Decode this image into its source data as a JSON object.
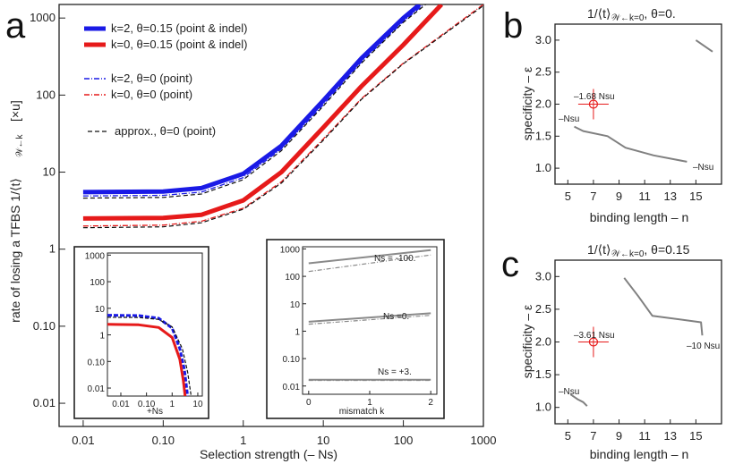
{
  "panels": {
    "a": {
      "letter": "a",
      "xlabel": "Selection strength  (– Ns)",
      "ylabel": "rate of losing a TFBS  1/⟨t⟩",
      "ylabel_sub": "𝒲←k",
      "ylabel_unit": "[×u]",
      "xticks": [
        "0.01",
        "0.10",
        "1",
        "10",
        "100",
        "1000"
      ],
      "yticks": [
        "0.01",
        "0.10",
        "1",
        "10",
        "100",
        "1000"
      ],
      "legend": [
        {
          "label": "k=2, θ=0.15 (point & indel)",
          "color": "#1a1ae6",
          "style": "thick"
        },
        {
          "label": "k=0, θ=0.15 (point & indel)",
          "color": "#e61a1a",
          "style": "thick"
        },
        {
          "label": "k=2, θ=0 (point)",
          "color": "#1a1ae6",
          "style": "dashdot"
        },
        {
          "label": "k=0, θ=0 (point)",
          "color": "#e61a1a",
          "style": "dashdot"
        },
        {
          "label": "approx., θ=0 (point)",
          "color": "#111111",
          "style": "dashed"
        }
      ]
    },
    "inset1": {
      "xlabel": "+Ns",
      "xticks": [
        "0.01",
        "0.10",
        "1",
        "10"
      ],
      "yticks": [
        "0.01",
        "0.10",
        "1",
        "10",
        "100",
        "1000"
      ]
    },
    "inset2": {
      "xlabel": "mismatch k",
      "xticks": [
        "0",
        "1",
        "2"
      ],
      "yticks": [
        "0.01",
        "0.10",
        "1",
        "10",
        "100",
        "1000"
      ],
      "annotations": [
        "Ns = -100.",
        "Ns =0.",
        "Ns = +3."
      ]
    },
    "b": {
      "letter": "b",
      "title": "1/⟨t⟩",
      "title_sub": "𝒲←k=0",
      "title_tail": ", θ=0.",
      "xlabel": "binding length – n",
      "ylabel": "specificity – ε",
      "xticks": [
        "5",
        "7",
        "9",
        "11",
        "13",
        "15"
      ],
      "yticks": [
        "1.0",
        "1.5",
        "2.0",
        "2.5",
        "3.0"
      ],
      "annotations": [
        "–1.68 Nsu",
        "–Nsu",
        "–Nsu"
      ]
    },
    "c": {
      "letter": "c",
      "title": "1/⟨t⟩",
      "title_sub": "𝒲←k=0",
      "title_tail": ", θ=0.15",
      "xlabel": "binding length – n",
      "ylabel": "specificity – ε",
      "xticks": [
        "5",
        "7",
        "9",
        "11",
        "13",
        "15"
      ],
      "yticks": [
        "1.0",
        "1.5",
        "2.0",
        "2.5",
        "3.0"
      ],
      "annotations": [
        "–3.61 Nsu",
        "–10 Nsu",
        "–Nsu"
      ]
    }
  },
  "chart_data": [
    {
      "type": "line",
      "panel": "a",
      "xscale": "log",
      "yscale": "log",
      "xlim": [
        0.005,
        1000
      ],
      "ylim": [
        0.005,
        1500
      ],
      "series": [
        {
          "name": "k=2, θ=0.15 (point & indel)",
          "x": [
            0.01,
            0.1,
            0.3,
            1,
            3,
            10,
            30,
            100,
            160
          ],
          "y": [
            5.5,
            5.6,
            6.2,
            9.5,
            22,
            85,
            300,
            1000,
            1500
          ]
        },
        {
          "name": "k=0, θ=0.15 (point & indel)",
          "x": [
            0.01,
            0.1,
            0.3,
            1,
            3,
            10,
            30,
            100,
            300
          ],
          "y": [
            2.5,
            2.55,
            2.8,
            4.3,
            10,
            38,
            130,
            450,
            1500
          ]
        },
        {
          "name": "k=2, θ=0 (point)",
          "x": [
            0.01,
            0.1,
            0.3,
            1,
            3,
            10,
            30,
            100,
            180
          ],
          "y": [
            4.9,
            5.0,
            5.5,
            8.5,
            20,
            75,
            270,
            900,
            1500
          ]
        },
        {
          "name": "k=0, θ=0 (point)",
          "x": [
            0.01,
            0.1,
            0.3,
            1,
            3,
            10,
            30,
            100,
            1000
          ],
          "y": [
            2.0,
            2.05,
            2.3,
            3.4,
            7.5,
            27,
            90,
            260,
            1500
          ]
        },
        {
          "name": "approx., θ=0 (point)",
          "x": [
            0.01,
            0.1,
            0.3,
            1,
            3,
            10,
            30,
            100,
            1000
          ],
          "y": [
            1.9,
            1.95,
            2.2,
            3.3,
            7.2,
            26,
            88,
            255,
            1450
          ]
        },
        {
          "name": "approx. k=2",
          "x": [
            0.01,
            0.1,
            0.3,
            1,
            3,
            10,
            30,
            100,
            190
          ],
          "y": [
            4.6,
            4.7,
            5.2,
            8.0,
            19,
            72,
            260,
            880,
            1500
          ]
        }
      ]
    },
    {
      "type": "line",
      "panel": "inset1",
      "xscale": "log",
      "yscale": "log",
      "xlim": [
        0.003,
        15
      ],
      "ylim": [
        0.005,
        1200
      ],
      "series": [
        {
          "name": "k=2 θ=0.15",
          "x": [
            0.003,
            0.05,
            0.3,
            1,
            2,
            3,
            4
          ],
          "y": [
            5.5,
            5.3,
            4.2,
            1.8,
            0.3,
            0.05,
            0.005
          ]
        },
        {
          "name": "k=0 θ=0.15",
          "x": [
            0.003,
            0.05,
            0.3,
            1,
            2,
            2.7,
            3.2
          ],
          "y": [
            2.5,
            2.4,
            1.9,
            0.8,
            0.12,
            0.02,
            0.005
          ]
        },
        {
          "name": "approx",
          "x": [
            0.003,
            0.05,
            0.3,
            1,
            2.5,
            4,
            5.5
          ],
          "y": [
            4.6,
            4.5,
            3.8,
            2.0,
            0.3,
            0.04,
            0.005
          ]
        }
      ]
    },
    {
      "type": "line",
      "panel": "inset2",
      "xscale": "linear",
      "yscale": "log",
      "xlim": [
        -0.1,
        2.1
      ],
      "ylim": [
        0.005,
        1200
      ],
      "series": [
        {
          "name": "Ns=-100",
          "x": [
            0,
            2
          ],
          "y": [
            300,
            900
          ]
        },
        {
          "name": "Ns=-100 approx",
          "x": [
            0,
            2
          ],
          "y": [
            150,
            600
          ]
        },
        {
          "name": "Ns=0",
          "x": [
            0,
            2
          ],
          "y": [
            2.2,
            4.5
          ]
        },
        {
          "name": "Ns=0 approx",
          "x": [
            0,
            2
          ],
          "y": [
            1.8,
            3.8
          ]
        },
        {
          "name": "Ns=+3",
          "x": [
            0,
            2
          ],
          "y": [
            0.017,
            0.017
          ]
        },
        {
          "name": "Ns=+3 approx",
          "x": [
            0,
            2
          ],
          "y": [
            0.016,
            0.016
          ]
        }
      ]
    },
    {
      "type": "line",
      "panel": "b",
      "xlim": [
        4,
        17
      ],
      "ylim": [
        0.75,
        3.25
      ],
      "series": [
        {
          "name": "-Nsu contour",
          "x": [
            5.5,
            6.2,
            8.1,
            9.5,
            11.7,
            14.3
          ],
          "y": [
            1.65,
            1.58,
            1.5,
            1.32,
            1.2,
            1.1
          ]
        },
        {
          "name": "upper contour",
          "x": [
            15,
            16.3
          ],
          "y": [
            3.0,
            2.82
          ]
        }
      ],
      "marker": {
        "x": 7,
        "y": 2.0
      }
    },
    {
      "type": "line",
      "panel": "c",
      "xlim": [
        4,
        17
      ],
      "ylim": [
        0.75,
        3.25
      ],
      "series": [
        {
          "name": "-10 Nsu contour",
          "x": [
            9.4,
            10.5,
            11.6,
            15.4,
            15.5
          ],
          "y": [
            2.98,
            2.7,
            2.4,
            2.3,
            2.1
          ]
        },
        {
          "name": "-Nsu contour",
          "x": [
            5.2,
            5.8,
            6.2,
            6.5
          ],
          "y": [
            1.2,
            1.12,
            1.08,
            1.02
          ]
        }
      ],
      "marker": {
        "x": 7,
        "y": 2.0
      }
    }
  ]
}
